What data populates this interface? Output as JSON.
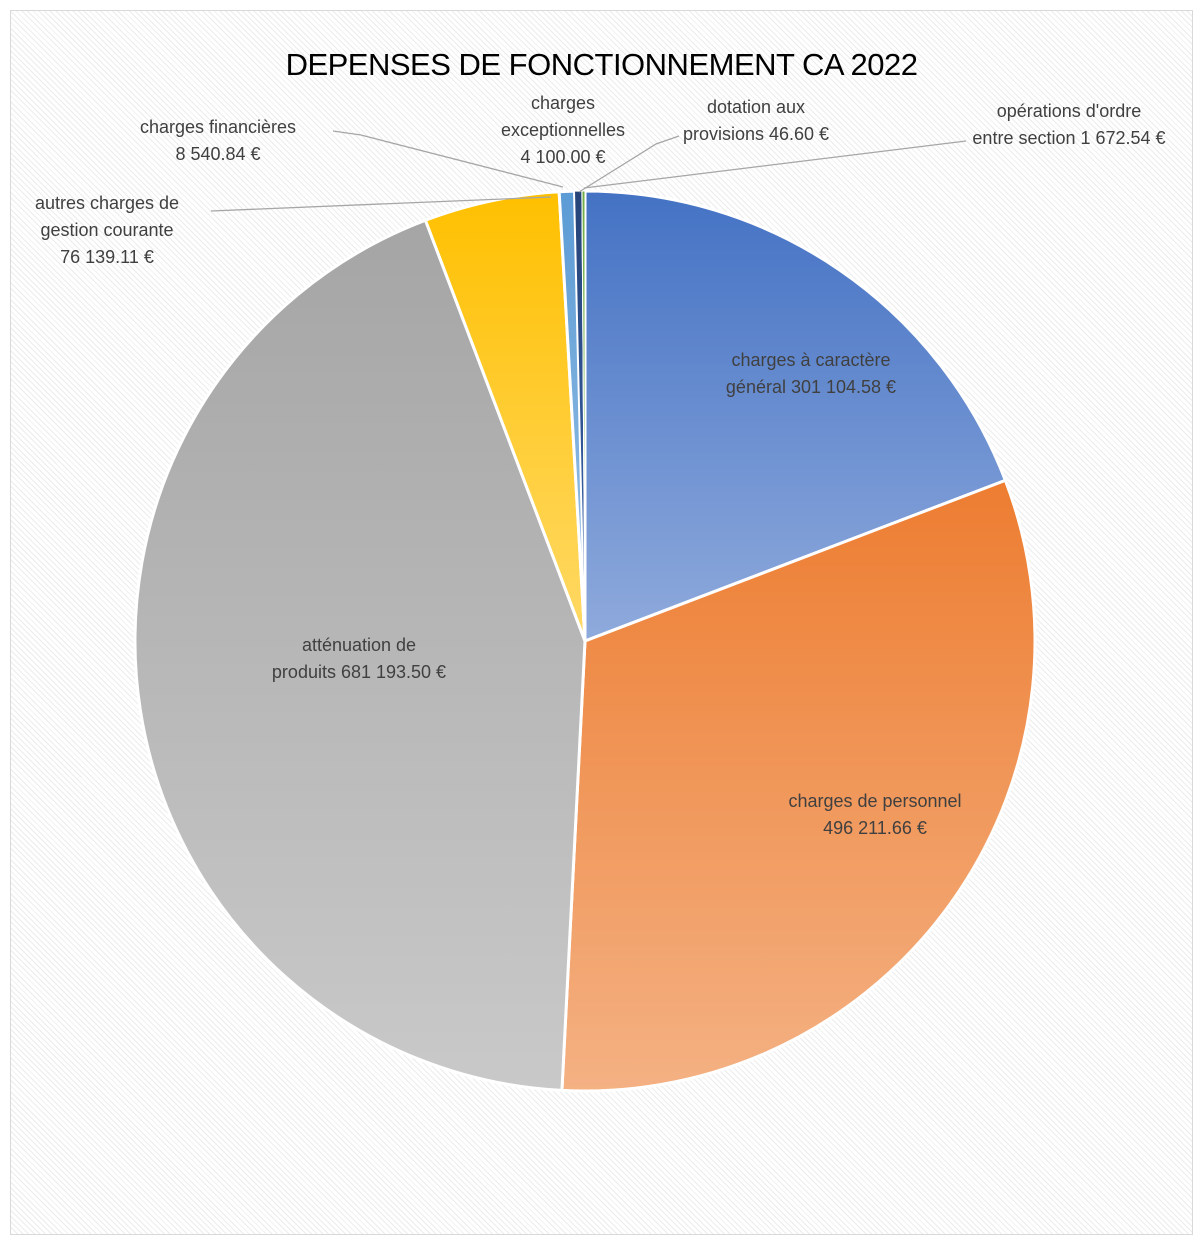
{
  "chart_data": {
    "type": "pie",
    "title": "DEPENSES DE FONCTIONNEMENT CA 2022",
    "slices": [
      {
        "name": "charges à caractère général",
        "value": 301104.58,
        "label_lines": [
          "charges à caractère",
          "général 301 104.58 €"
        ],
        "color_top": "#4472c4",
        "color_bottom": "#8faadc"
      },
      {
        "name": "charges de personnel",
        "value": 496211.66,
        "label_lines": [
          "charges de personnel",
          "496 211.66 €"
        ],
        "color_top": "#ed7d31",
        "color_bottom": "#f4b183"
      },
      {
        "name": "atténuation de produits",
        "value": 681193.5,
        "label_lines": [
          "atténuation de",
          "produits 681 193.50 €"
        ],
        "color_top": "#a5a5a5",
        "color_bottom": "#c9c9c9"
      },
      {
        "name": "autres charges de gestion courante",
        "value": 76139.11,
        "label_lines": [
          "autres charges de",
          "gestion courante",
          "76 139.11 €"
        ],
        "color_top": "#ffc000",
        "color_bottom": "#ffd966"
      },
      {
        "name": "charges financières",
        "value": 8540.84,
        "label_lines": [
          "charges financières",
          "8 540.84 €"
        ],
        "color_top": "#5b9bd5",
        "color_bottom": "#9dc3e6"
      },
      {
        "name": "charges exceptionnelles",
        "value": 4100.0,
        "label_lines": [
          "charges",
          "exceptionnelles",
          "4 100.00 €"
        ],
        "color_top": "#264478",
        "color_bottom": "#3b64ad"
      },
      {
        "name": "dotation aux provisions",
        "value": 46.6,
        "label_lines": [
          "dotation aux",
          "provisions 46.60 €"
        ],
        "color_top": "#9e480e",
        "color_bottom": "#d26012"
      },
      {
        "name": "opérations d'ordre entre section",
        "value": 1672.54,
        "label_lines": [
          "opérations d'ordre",
          "entre section 1 672.54 €"
        ],
        "color_top": "#70ad47",
        "color_bottom": "#a9d18e"
      }
    ]
  }
}
